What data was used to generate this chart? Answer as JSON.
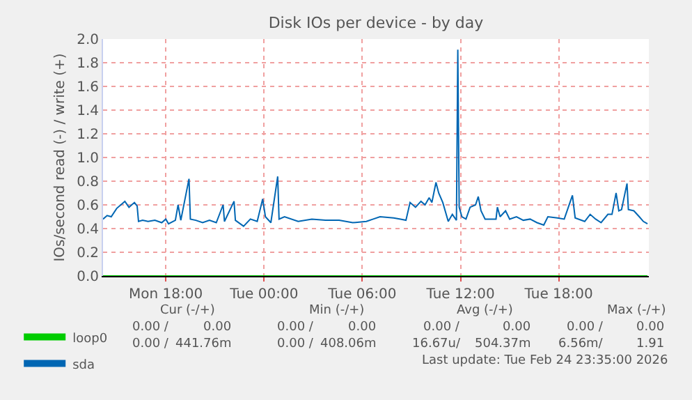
{
  "chart_data": {
    "type": "line",
    "title": "Disk IOs per device - by day",
    "ylabel": "IOs/second read (-) / write (+)",
    "xlim": [
      "2026-02-23T14:10",
      "2026-02-24T23:30"
    ],
    "xticks": [
      {
        "value": "2026-02-23T18:00",
        "label": "Mon 18:00"
      },
      {
        "value": "2026-02-24T00:00",
        "label": "Tue 00:00"
      },
      {
        "value": "2026-02-24T06:00",
        "label": "Tue 06:00"
      },
      {
        "value": "2026-02-24T12:00",
        "label": "Tue 12:00"
      },
      {
        "value": "2026-02-24T18:00",
        "label": "Tue 18:00"
      }
    ],
    "ylim": [
      0,
      2.0
    ],
    "yticks": [
      {
        "value": 0,
        "label": "0.0"
      },
      {
        "value": 0.2,
        "label": "0.2"
      },
      {
        "value": 0.4,
        "label": "0.4"
      },
      {
        "value": 0.6,
        "label": "0.6"
      },
      {
        "value": 0.8,
        "label": "0.8"
      },
      {
        "value": 1.0,
        "label": "1.0"
      },
      {
        "value": 1.2,
        "label": "1.2"
      },
      {
        "value": 1.4,
        "label": "1.4"
      },
      {
        "value": 1.6,
        "label": "1.6"
      },
      {
        "value": 1.8,
        "label": "1.8"
      },
      {
        "value": 2.0,
        "label": "2.0"
      }
    ],
    "grid": true,
    "legend": "bottom left",
    "marker": "none",
    "line_style": "solid",
    "series": [
      {
        "name": "loop0",
        "color": "#00cc00",
        "x": [
          "2026-02-23T14:10",
          "2026-02-24T23:25"
        ],
        "values": [
          0,
          0
        ]
      },
      {
        "name": "sda",
        "color": "#0066b3",
        "x": [
          "2026-02-23T14:10",
          "2026-02-23T14:25",
          "2026-02-23T14:40",
          "2026-02-23T15:00",
          "2026-02-23T15:30",
          "2026-02-23T15:45",
          "2026-02-23T15:55",
          "2026-02-23T16:05",
          "2026-02-23T16:15",
          "2026-02-23T16:20",
          "2026-02-23T16:35",
          "2026-02-23T16:55",
          "2026-02-23T17:20",
          "2026-02-23T17:45",
          "2026-02-23T18:00",
          "2026-02-23T18:10",
          "2026-02-23T18:35",
          "2026-02-23T18:45",
          "2026-02-23T18:55",
          "2026-02-23T19:25",
          "2026-02-23T19:30",
          "2026-02-23T19:50",
          "2026-02-23T20:15",
          "2026-02-23T20:40",
          "2026-02-23T21:05",
          "2026-02-23T21:30",
          "2026-02-23T21:35",
          "2026-02-23T22:10",
          "2026-02-23T22:15",
          "2026-02-23T22:45",
          "2026-02-23T23:10",
          "2026-02-23T23:35",
          "2026-02-23T23:55",
          "2026-02-24T00:05",
          "2026-02-24T00:25",
          "2026-02-24T00:50",
          "2026-02-24T00:55",
          "2026-02-24T01:15",
          "2026-02-24T02:05",
          "2026-02-24T02:55",
          "2026-02-24T03:45",
          "2026-02-24T04:35",
          "2026-02-24T05:25",
          "2026-02-24T06:15",
          "2026-02-24T06:40",
          "2026-02-24T07:05",
          "2026-02-24T07:55",
          "2026-02-24T08:20",
          "2026-02-24T08:40",
          "2026-02-24T08:55",
          "2026-02-24T09:15",
          "2026-02-24T09:35",
          "2026-02-24T09:50",
          "2026-02-24T10:05",
          "2026-02-24T10:15",
          "2026-02-24T10:30",
          "2026-02-24T10:40",
          "2026-02-24T10:55",
          "2026-02-24T11:15",
          "2026-02-24T11:30",
          "2026-02-24T11:45",
          "2026-02-24T11:50",
          "2026-02-24T11:55",
          "2026-02-24T12:05",
          "2026-02-24T12:20",
          "2026-02-24T12:35",
          "2026-02-24T12:55",
          "2026-02-24T13:05",
          "2026-02-24T13:15",
          "2026-02-24T13:30",
          "2026-02-24T13:45",
          "2026-02-24T14:10",
          "2026-02-24T14:15",
          "2026-02-24T14:25",
          "2026-02-24T14:45",
          "2026-02-24T15:00",
          "2026-02-24T15:25",
          "2026-02-24T15:50",
          "2026-02-24T16:15",
          "2026-02-24T16:40",
          "2026-02-24T17:05",
          "2026-02-24T17:20",
          "2026-02-24T17:55",
          "2026-02-24T18:20",
          "2026-02-24T18:50",
          "2026-02-24T19:00",
          "2026-02-24T19:35",
          "2026-02-24T19:55",
          "2026-02-24T20:15",
          "2026-02-24T20:35",
          "2026-02-24T21:00",
          "2026-02-24T21:15",
          "2026-02-24T21:30",
          "2026-02-24T21:40",
          "2026-02-24T21:50",
          "2026-02-24T22:10",
          "2026-02-24T22:15",
          "2026-02-24T22:35",
          "2026-02-24T22:55",
          "2026-02-24T23:10",
          "2026-02-24T23:25"
        ],
        "values": [
          0.48,
          0.51,
          0.5,
          0.57,
          0.63,
          0.58,
          0.6,
          0.62,
          0.59,
          0.46,
          0.47,
          0.46,
          0.47,
          0.45,
          0.48,
          0.44,
          0.47,
          0.6,
          0.47,
          0.82,
          0.48,
          0.47,
          0.45,
          0.47,
          0.45,
          0.6,
          0.46,
          0.63,
          0.47,
          0.42,
          0.48,
          0.46,
          0.65,
          0.5,
          0.45,
          0.84,
          0.48,
          0.5,
          0.46,
          0.48,
          0.47,
          0.47,
          0.45,
          0.46,
          0.48,
          0.5,
          0.49,
          0.48,
          0.47,
          0.62,
          0.58,
          0.63,
          0.6,
          0.66,
          0.62,
          0.79,
          0.7,
          0.62,
          0.46,
          0.52,
          0.47,
          1.91,
          0.58,
          0.5,
          0.48,
          0.58,
          0.6,
          0.67,
          0.55,
          0.48,
          0.48,
          0.48,
          0.58,
          0.5,
          0.55,
          0.48,
          0.5,
          0.47,
          0.48,
          0.45,
          0.43,
          0.5,
          0.49,
          0.48,
          0.68,
          0.49,
          0.46,
          0.52,
          0.48,
          0.45,
          0.52,
          0.52,
          0.7,
          0.55,
          0.56,
          0.78,
          0.56,
          0.55,
          0.5,
          0.46,
          0.44
        ]
      }
    ],
    "annotations": [
      "Cur (-/+)",
      "Min (-/+)",
      "Avg (-/+)",
      "Max (-/+)",
      "0.00 /",
      "0.00",
      "0.00 /",
      "0.00",
      "0.00 /",
      "0.00",
      "0.00 /",
      "0.00",
      "0.00 /",
      "441.76m",
      "0.00 /",
      "408.06m",
      "16.67u/",
      "504.37m",
      "6.56m/",
      "1.91",
      "Last update: Tue Feb 24 23:35:00 2026"
    ]
  }
}
